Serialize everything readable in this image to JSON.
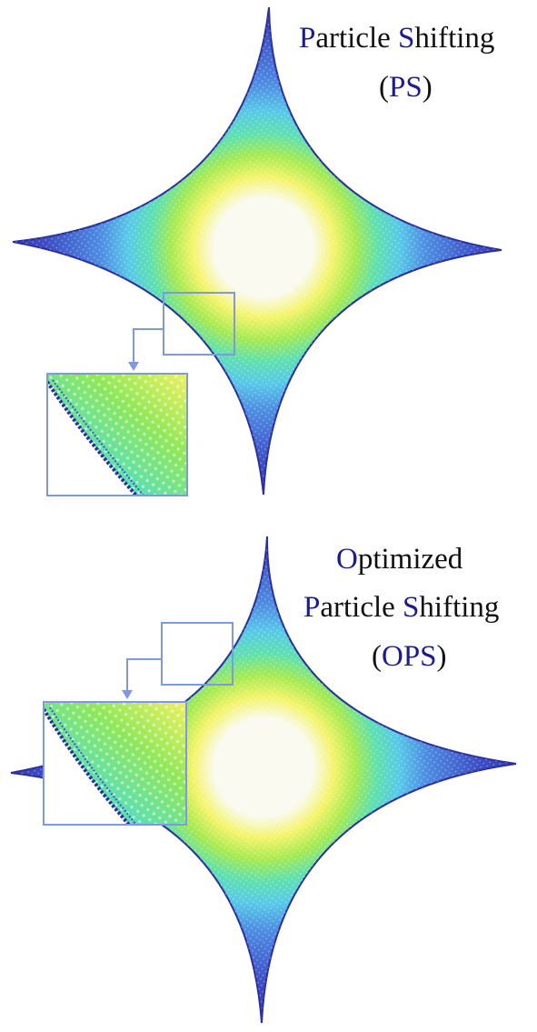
{
  "panels": [
    {
      "id": "ps",
      "title_lines": [
        [
          {
            "t": "P",
            "accent": true
          },
          {
            "t": "article ",
            "accent": false
          },
          {
            "t": "S",
            "accent": true
          },
          {
            "t": "hifting",
            "accent": false
          }
        ],
        [
          {
            "t": "(",
            "accent": false
          },
          {
            "t": "PS",
            "accent": true
          },
          {
            "t": ")",
            "accent": false
          }
        ]
      ]
    },
    {
      "id": "ops",
      "title_lines": [
        [
          {
            "t": "O",
            "accent": true
          },
          {
            "t": "ptimized",
            "accent": false
          }
        ],
        [
          {
            "t": "P",
            "accent": true
          },
          {
            "t": "article ",
            "accent": false
          },
          {
            "t": "S",
            "accent": true
          },
          {
            "t": "hifting",
            "accent": false
          }
        ],
        [
          {
            "t": "(",
            "accent": false
          },
          {
            "t": "OPS",
            "accent": true
          },
          {
            "t": ")",
            "accent": false
          }
        ]
      ]
    }
  ],
  "colors": {
    "accent_text": "#1c1c8f",
    "text": "#111111",
    "callout_frame": "#7f98e6",
    "colormap": [
      "#3a3fb8",
      "#4d7fe0",
      "#58c9e8",
      "#5fe0b0",
      "#9aea50",
      "#f0f060",
      "#fafaf0"
    ]
  }
}
